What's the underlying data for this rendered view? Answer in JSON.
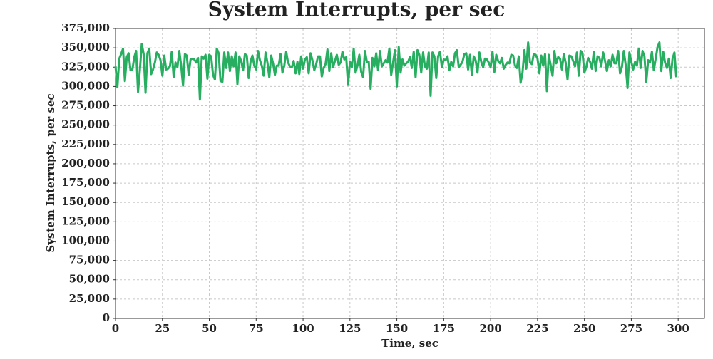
{
  "chart_data": {
    "type": "line",
    "title": "System Interrupts, per sec",
    "xlabel": "Time, sec",
    "ylabel": "System Interrupts, per sec",
    "xlim": [
      0,
      314
    ],
    "xticks": [
      0,
      25,
      50,
      75,
      100,
      125,
      150,
      175,
      200,
      225,
      250,
      275,
      300
    ],
    "ylim": [
      0,
      375000
    ],
    "yticks": [
      0,
      {
        "value": 25000,
        "label": "25,000"
      },
      {
        "value": 50000,
        "label": "50,000"
      },
      {
        "value": 75000,
        "label": "75,000"
      },
      {
        "value": 100000,
        "label": "100,000"
      },
      {
        "value": 125000,
        "label": "125,000"
      },
      {
        "value": 150000,
        "label": "150,000"
      },
      {
        "value": 175000,
        "label": "175,000"
      },
      {
        "value": 200000,
        "label": "200,000"
      },
      {
        "value": 225000,
        "label": "225,000"
      },
      {
        "value": 250000,
        "label": "250,000"
      },
      {
        "value": 275000,
        "label": "275,000"
      },
      {
        "value": 300000,
        "label": "300,000"
      },
      {
        "value": 325000,
        "label": "325,000"
      },
      {
        "value": 350000,
        "label": "350,000"
      },
      {
        "value": 375000,
        "label": "375,000"
      }
    ],
    "grid": true,
    "x": [
      0,
      1,
      2,
      3,
      4,
      5,
      6,
      7,
      8,
      9,
      10,
      11,
      12,
      13,
      14,
      15,
      16,
      17,
      18,
      19,
      20,
      21,
      22,
      23,
      24,
      25,
      26,
      27,
      28,
      29,
      30,
      31,
      32,
      33,
      34,
      35,
      36,
      37,
      38,
      39,
      40,
      41,
      42,
      43,
      44,
      45,
      46,
      47,
      48,
      49,
      50,
      51,
      52,
      53,
      54,
      55,
      56,
      57,
      58,
      59,
      60,
      61,
      62,
      63,
      64,
      65,
      66,
      67,
      68,
      69,
      70,
      71,
      72,
      73,
      74,
      75,
      76,
      77,
      78,
      79,
      80,
      81,
      82,
      83,
      84,
      85,
      86,
      87,
      88,
      89,
      90,
      91,
      92,
      93,
      94,
      95,
      96,
      97,
      98,
      99,
      100,
      101,
      102,
      103,
      104,
      105,
      106,
      107,
      108,
      109,
      110,
      111,
      112,
      113,
      114,
      115,
      116,
      117,
      118,
      119,
      120,
      121,
      122,
      123,
      124,
      125,
      126,
      127,
      128,
      129,
      130,
      131,
      132,
      133,
      134,
      135,
      136,
      137,
      138,
      139,
      140,
      141,
      142,
      143,
      144,
      145,
      146,
      147,
      148,
      149,
      150,
      151,
      152,
      153,
      154,
      155,
      156,
      157,
      158,
      159,
      160,
      161,
      162,
      163,
      164,
      165,
      166,
      167,
      168,
      169,
      170,
      171,
      172,
      173,
      174,
      175,
      176,
      177,
      178,
      179,
      180,
      181,
      182,
      183,
      184,
      185,
      186,
      187,
      188,
      189,
      190,
      191,
      192,
      193,
      194,
      195,
      196,
      197,
      198,
      199,
      200,
      201,
      202,
      203,
      204,
      205,
      206,
      207,
      208,
      209,
      210,
      211,
      212,
      213,
      214,
      215,
      216,
      217,
      218,
      219,
      220,
      221,
      222,
      223,
      224,
      225,
      226,
      227,
      228,
      229,
      230,
      231,
      232,
      233,
      234,
      235,
      236,
      237,
      238,
      239,
      240,
      241,
      242,
      243,
      244,
      245,
      246,
      247,
      248,
      249,
      250,
      251,
      252,
      253,
      254,
      255,
      256,
      257,
      258,
      259,
      260,
      261,
      262,
      263,
      264,
      265,
      266,
      267,
      268,
      269,
      270,
      271,
      272,
      273,
      274,
      275,
      276,
      277,
      278,
      279,
      280,
      281,
      282,
      283,
      284,
      285,
      286,
      287,
      288,
      289,
      290,
      291,
      292,
      293,
      294,
      295,
      296,
      297,
      298,
      299
    ],
    "series": [
      {
        "color": "#27ae60",
        "values": [
          326000,
          299000,
          336000,
          342000,
          349000,
          307000,
          338000,
          343000,
          321000,
          322000,
          338000,
          346000,
          293000,
          322000,
          355000,
          342000,
          292000,
          343000,
          349000,
          316000,
          322000,
          331000,
          344000,
          341000,
          334000,
          314000,
          340000,
          322000,
          323000,
          326000,
          345000,
          312000,
          331000,
          325000,
          346000,
          327000,
          301000,
          342000,
          340000,
          315000,
          335000,
          336000,
          335000,
          331000,
          337000,
          283000,
          339000,
          336000,
          341000,
          310000,
          341000,
          339000,
          315000,
          309000,
          349000,
          343000,
          307000,
          306000,
          344000,
          324000,
          344000,
          320000,
          339000,
          326000,
          344000,
          303000,
          339000,
          333000,
          321000,
          342000,
          340000,
          311000,
          332000,
          340000,
          327000,
          322000,
          346000,
          334000,
          327000,
          314000,
          344000,
          331000,
          312000,
          340000,
          330000,
          315000,
          327000,
          327000,
          342000,
          318000,
          327000,
          345000,
          331000,
          326000,
          325000,
          333000,
          317000,
          332000,
          316000,
          339000,
          323000,
          335000,
          338000,
          317000,
          343000,
          334000,
          321000,
          329000,
          339000,
          339000,
          313000,
          324000,
          329000,
          348000,
          320000,
          343000,
          325000,
          333000,
          341000,
          328000,
          331000,
          345000,
          335000,
          338000,
          302000,
          332000,
          325000,
          349000,
          318000,
          327000,
          341000,
          319000,
          312000,
          346000,
          332000,
          332000,
          297000,
          337000,
          326000,
          343000,
          321000,
          346000,
          326000,
          330000,
          334000,
          331000,
          349000,
          315000,
          331000,
          347000,
          300000,
          351000,
          318000,
          335000,
          327000,
          330000,
          332000,
          338000,
          324000,
          345000,
          312000,
          347000,
          341000,
          318000,
          344000,
          326000,
          323000,
          344000,
          288000,
          344000,
          339000,
          311000,
          339000,
          345000,
          325000,
          335000,
          334000,
          339000,
          321000,
          332000,
          326000,
          343000,
          347000,
          325000,
          328000,
          332000,
          342000,
          343000,
          322000,
          341000,
          315000,
          339000,
          334000,
          318000,
          344000,
          332000,
          325000,
          336000,
          335000,
          331000,
          325000,
          345000,
          319000,
          341000,
          333000,
          330000,
          337000,
          323000,
          328000,
          331000,
          330000,
          341000,
          340000,
          327000,
          324000,
          339000,
          305000,
          318000,
          347000,
          323000,
          357000,
          331000,
          329000,
          342000,
          341000,
          336000,
          317000,
          340000,
          327000,
          342000,
          294000,
          341000,
          328000,
          314000,
          346000,
          330000,
          338000,
          336000,
          322000,
          342000,
          331000,
          309000,
          340000,
          339000,
          333000,
          326000,
          344000,
          314000,
          346000,
          343000,
          318000,
          325000,
          337000,
          332000,
          323000,
          345000,
          320000,
          339000,
          337000,
          326000,
          344000,
          333000,
          320000,
          334000,
          326000,
          341000,
          330000,
          330000,
          346000,
          317000,
          325000,
          346000,
          328000,
          298000,
          344000,
          332000,
          322000,
          332000,
          327000,
          349000,
          324000,
          346000,
          339000,
          306000,
          334000,
          331000,
          345000,
          321000,
          336000,
          351000,
          357000,
          320000,
          345000,
          331000,
          324000,
          336000,
          311000,
          336000,
          344000,
          312000
        ]
      }
    ]
  }
}
